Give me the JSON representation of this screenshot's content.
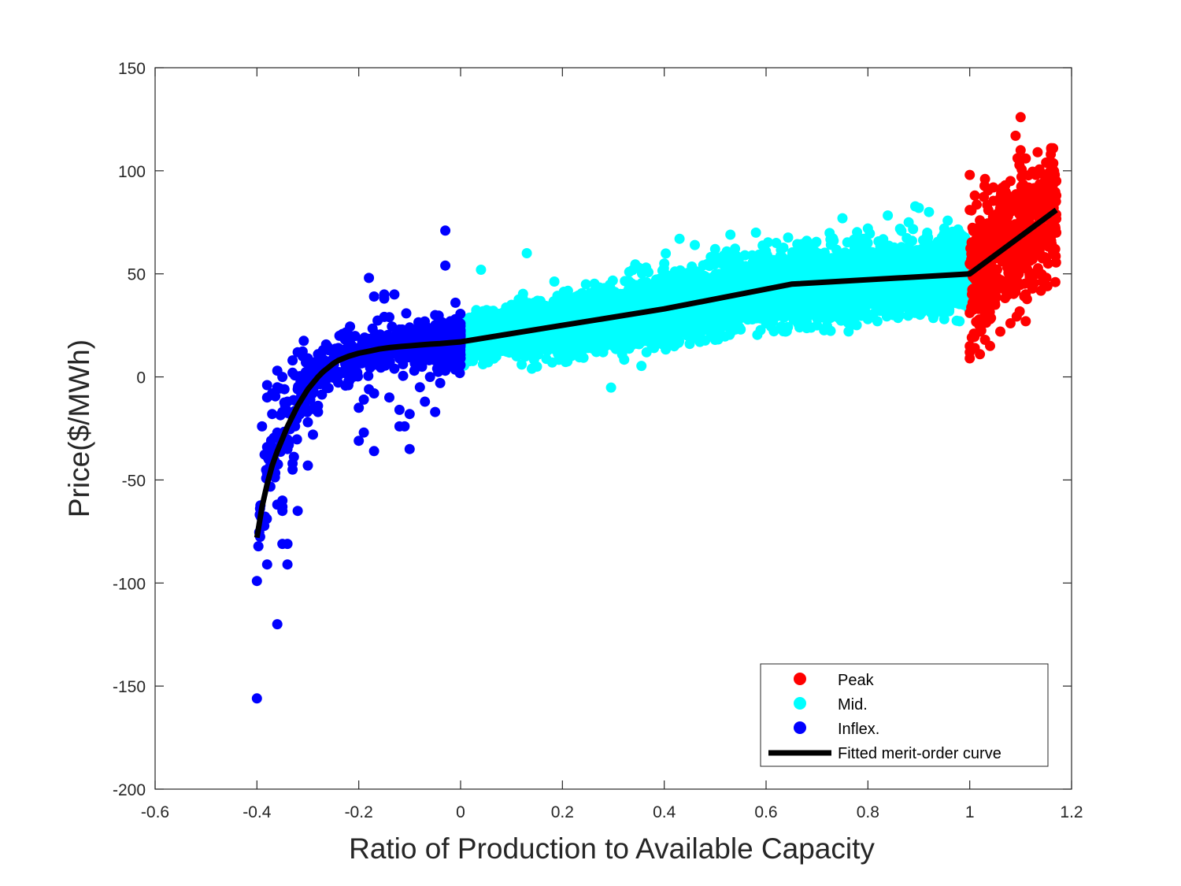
{
  "chart_data": {
    "type": "scatter",
    "title": "",
    "xlabel": "Ratio of Production to Available Capacity",
    "ylabel": "Price($/MWh)",
    "xlim": [
      -0.6,
      1.2
    ],
    "ylim": [
      -200,
      150
    ],
    "xticks": [
      -0.6,
      -0.4,
      -0.2,
      0,
      0.2,
      0.4,
      0.6,
      0.8,
      1,
      1.2
    ],
    "xtick_labels": [
      "-0.6",
      "-0.4",
      "-0.2",
      "0",
      "0.2",
      "0.4",
      "0.6",
      "0.8",
      "1",
      "1.2"
    ],
    "yticks": [
      -200,
      -150,
      -100,
      -50,
      0,
      50,
      100,
      150
    ],
    "ytick_labels": [
      "-200",
      "-150",
      "-100",
      "-50",
      "0",
      "50",
      "100",
      "150"
    ],
    "grid": false,
    "legend_position": "bottom-right",
    "legend": [
      "Peak",
      "Mid.",
      "Inflex.",
      "Fitted merit-order curve"
    ],
    "series": [
      {
        "name": "Peak",
        "color": "#ff0000",
        "kind": "scatter",
        "x_range": [
          1.0,
          1.17
        ],
        "trend": {
          "x": [
            1.0,
            1.17
          ],
          "y": [
            50,
            81
          ]
        },
        "spread": 14,
        "density": 700,
        "points": [
          [
            1.1,
            126
          ],
          [
            1.09,
            117
          ],
          [
            1.16,
            111
          ],
          [
            1.1,
            110
          ],
          [
            1.11,
            106
          ],
          [
            1.15,
            104
          ],
          [
            1.0,
            98
          ],
          [
            1.17,
            95
          ],
          [
            1.13,
            98
          ],
          [
            1.08,
            95
          ],
          [
            1.07,
            93
          ],
          [
            1.03,
            96
          ],
          [
            1.14,
            89
          ],
          [
            1.16,
            92
          ],
          [
            1.17,
            88
          ],
          [
            1.01,
            88
          ],
          [
            1.06,
            87
          ],
          [
            1.12,
            84
          ],
          [
            1.0,
            81
          ],
          [
            1.15,
            79
          ],
          [
            1.02,
            76
          ],
          [
            1.05,
            72
          ],
          [
            1.17,
            70
          ],
          [
            1.16,
            66
          ],
          [
            1.01,
            65
          ],
          [
            1.13,
            60
          ],
          [
            1.03,
            58
          ],
          [
            1.0,
            55
          ],
          [
            1.04,
            50
          ],
          [
            1.02,
            45
          ],
          [
            1.07,
            42
          ],
          [
            1.01,
            38
          ],
          [
            1.05,
            35
          ],
          [
            1.0,
            31
          ],
          [
            1.04,
            28
          ],
          [
            1.08,
            26
          ],
          [
            1.11,
            27
          ],
          [
            1.02,
            22
          ],
          [
            1.06,
            22
          ],
          [
            1.03,
            18
          ],
          [
            1.04,
            15
          ],
          [
            1.01,
            14
          ],
          [
            1.0,
            12
          ],
          [
            1.0,
            9
          ],
          [
            1.02,
            11
          ]
        ]
      },
      {
        "name": "Mid.",
        "color": "#00ffff",
        "kind": "scatter",
        "x_range": [
          0.0,
          1.0
        ],
        "trend": {
          "x": [
            0.0,
            0.2,
            0.4,
            0.65,
            1.0
          ],
          "y": [
            17,
            25,
            33,
            45,
            50
          ]
        },
        "spread": 8,
        "density": 6000,
        "points": [
          [
            0.04,
            52
          ],
          [
            0.13,
            60
          ],
          [
            0.1,
            35
          ],
          [
            0.07,
            10
          ],
          [
            0.12,
            6
          ],
          [
            0.14,
            4
          ],
          [
            0.15,
            5
          ],
          [
            0.18,
            7
          ],
          [
            0.2,
            12
          ],
          [
            0.35,
            53
          ],
          [
            0.4,
            55
          ],
          [
            0.43,
            67
          ],
          [
            0.46,
            64
          ],
          [
            0.5,
            62
          ],
          [
            0.53,
            69
          ],
          [
            0.58,
            70
          ],
          [
            0.62,
            65
          ],
          [
            0.68,
            66
          ],
          [
            0.75,
            77
          ],
          [
            0.8,
            72
          ],
          [
            0.88,
            75
          ],
          [
            0.9,
            82
          ],
          [
            0.92,
            80
          ],
          [
            0.95,
            72
          ],
          [
            0.98,
            70
          ],
          [
            0.45,
            16
          ],
          [
            0.5,
            18
          ],
          [
            0.55,
            23
          ],
          [
            0.6,
            26
          ],
          [
            0.7,
            25
          ],
          [
            0.8,
            28
          ],
          [
            0.85,
            30
          ],
          [
            0.93,
            30
          ],
          [
            0.95,
            28
          ],
          [
            0.98,
            27
          ],
          [
            0.42,
            20
          ],
          [
            0.33,
            19
          ],
          [
            0.25,
            14
          ],
          [
            0.3,
            15
          ],
          [
            0.38,
            14
          ],
          [
            0.47,
            17
          ],
          [
            0.28,
            12
          ]
        ]
      },
      {
        "name": "Inflex.",
        "color": "#0000ff",
        "kind": "scatter",
        "x_range": [
          -0.4,
          0.0
        ],
        "trend": {
          "x": [
            -0.4,
            -0.38,
            -0.35,
            -0.3,
            -0.25,
            -0.2,
            -0.15,
            -0.1,
            -0.05,
            0.0
          ],
          "y": [
            -78,
            -50,
            -25,
            -5,
            5,
            11,
            14,
            15,
            16,
            17
          ]
        },
        "spread": 6,
        "density": 650,
        "points": [
          [
            -0.4,
            -156
          ],
          [
            -0.36,
            -120
          ],
          [
            -0.4,
            -99
          ],
          [
            -0.38,
            -91
          ],
          [
            -0.34,
            -91
          ],
          [
            -0.35,
            -81
          ],
          [
            -0.34,
            -81
          ],
          [
            -0.35,
            -65
          ],
          [
            -0.35,
            -63
          ],
          [
            -0.36,
            -62
          ],
          [
            -0.35,
            -60
          ],
          [
            -0.32,
            -65
          ],
          [
            -0.33,
            -45
          ],
          [
            -0.33,
            -42
          ],
          [
            -0.3,
            -43
          ],
          [
            -0.38,
            -47
          ],
          [
            -0.34,
            -35
          ],
          [
            -0.38,
            -34
          ],
          [
            -0.35,
            -30
          ],
          [
            -0.36,
            -27
          ],
          [
            -0.39,
            -24
          ],
          [
            -0.37,
            -18
          ],
          [
            -0.35,
            -17
          ],
          [
            -0.29,
            -28
          ],
          [
            -0.3,
            -22
          ],
          [
            -0.28,
            -17
          ],
          [
            -0.38,
            -10
          ],
          [
            -0.37,
            -8
          ],
          [
            -0.36,
            -5
          ],
          [
            -0.38,
            -4
          ],
          [
            -0.32,
            -6
          ],
          [
            -0.34,
            -12
          ],
          [
            -0.3,
            -10
          ],
          [
            -0.28,
            -14
          ],
          [
            -0.35,
            0
          ],
          [
            -0.33,
            2
          ],
          [
            -0.36,
            3
          ],
          [
            -0.33,
            8
          ],
          [
            -0.31,
            10
          ],
          [
            -0.29,
            7
          ],
          [
            -0.27,
            5
          ],
          [
            -0.18,
            48
          ],
          [
            -0.17,
            39
          ],
          [
            -0.15,
            40
          ],
          [
            -0.15,
            38
          ],
          [
            -0.13,
            40
          ],
          [
            -0.14,
            29
          ],
          [
            -0.03,
            71
          ],
          [
            -0.03,
            54
          ],
          [
            -0.2,
            -31
          ],
          [
            -0.19,
            -27
          ],
          [
            -0.17,
            -36
          ],
          [
            -0.12,
            -24
          ],
          [
            -0.11,
            -24
          ],
          [
            -0.1,
            -35
          ],
          [
            -0.1,
            -18
          ],
          [
            -0.12,
            -16
          ],
          [
            -0.05,
            -17
          ],
          [
            -0.14,
            -10
          ],
          [
            -0.17,
            -8
          ],
          [
            -0.19,
            -11
          ],
          [
            -0.2,
            -15
          ],
          [
            -0.18,
            -6
          ],
          [
            -0.22,
            -2
          ],
          [
            -0.08,
            -5
          ],
          [
            -0.07,
            -12
          ],
          [
            -0.04,
            -3
          ],
          [
            -0.06,
            0
          ],
          [
            -0.03,
            3
          ],
          [
            -0.02,
            6
          ],
          [
            -0.02,
            10
          ],
          [
            -0.01,
            12
          ],
          [
            0.0,
            22
          ],
          [
            -0.01,
            36
          ],
          [
            -0.05,
            30
          ],
          [
            -0.02,
            27
          ],
          [
            -0.08,
            26
          ],
          [
            -0.1,
            24
          ],
          [
            -0.12,
            23
          ],
          [
            -0.15,
            19
          ],
          [
            -0.18,
            17
          ],
          [
            -0.22,
            16
          ],
          [
            -0.24,
            14
          ],
          [
            -0.26,
            13
          ],
          [
            -0.28,
            11
          ],
          [
            -0.25,
            9
          ],
          [
            -0.2,
            8
          ],
          [
            -0.16,
            6
          ],
          [
            -0.13,
            4
          ],
          [
            -0.09,
            7
          ],
          [
            -0.06,
            11
          ],
          [
            -0.04,
            14
          ],
          [
            -0.15,
            11
          ],
          [
            -0.1,
            15
          ],
          [
            -0.08,
            19
          ],
          [
            -0.06,
            21
          ],
          [
            -0.03,
            24
          ],
          [
            -0.01,
            25
          ],
          [
            -0.02,
            18
          ],
          [
            -0.05,
            8
          ],
          [
            -0.12,
            9
          ],
          [
            -0.2,
            13
          ],
          [
            -0.3,
            9
          ],
          [
            -0.32,
            12
          ],
          [
            -0.27,
            13
          ]
        ]
      },
      {
        "name": "Fitted merit-order curve",
        "color": "#000000",
        "kind": "line",
        "x": [
          -0.4,
          -0.39,
          -0.38,
          -0.37,
          -0.36,
          -0.35,
          -0.34,
          -0.33,
          -0.32,
          -0.31,
          -0.3,
          -0.29,
          -0.28,
          -0.27,
          -0.26,
          -0.25,
          -0.24,
          -0.22,
          -0.2,
          -0.18,
          -0.16,
          -0.14,
          -0.12,
          -0.1,
          -0.08,
          -0.06,
          -0.04,
          -0.02,
          0.0,
          0.2,
          0.4,
          0.65,
          1.0,
          1.17
        ],
        "y": [
          -78,
          -63,
          -52,
          -43,
          -36,
          -30,
          -24,
          -19,
          -14,
          -10,
          -6,
          -3,
          0,
          2.5,
          4.5,
          6.5,
          8,
          10,
          11.5,
          12.5,
          13.5,
          14.2,
          14.7,
          15.1,
          15.5,
          15.9,
          16.2,
          16.6,
          17,
          25,
          33,
          45,
          50,
          81
        ]
      }
    ]
  }
}
